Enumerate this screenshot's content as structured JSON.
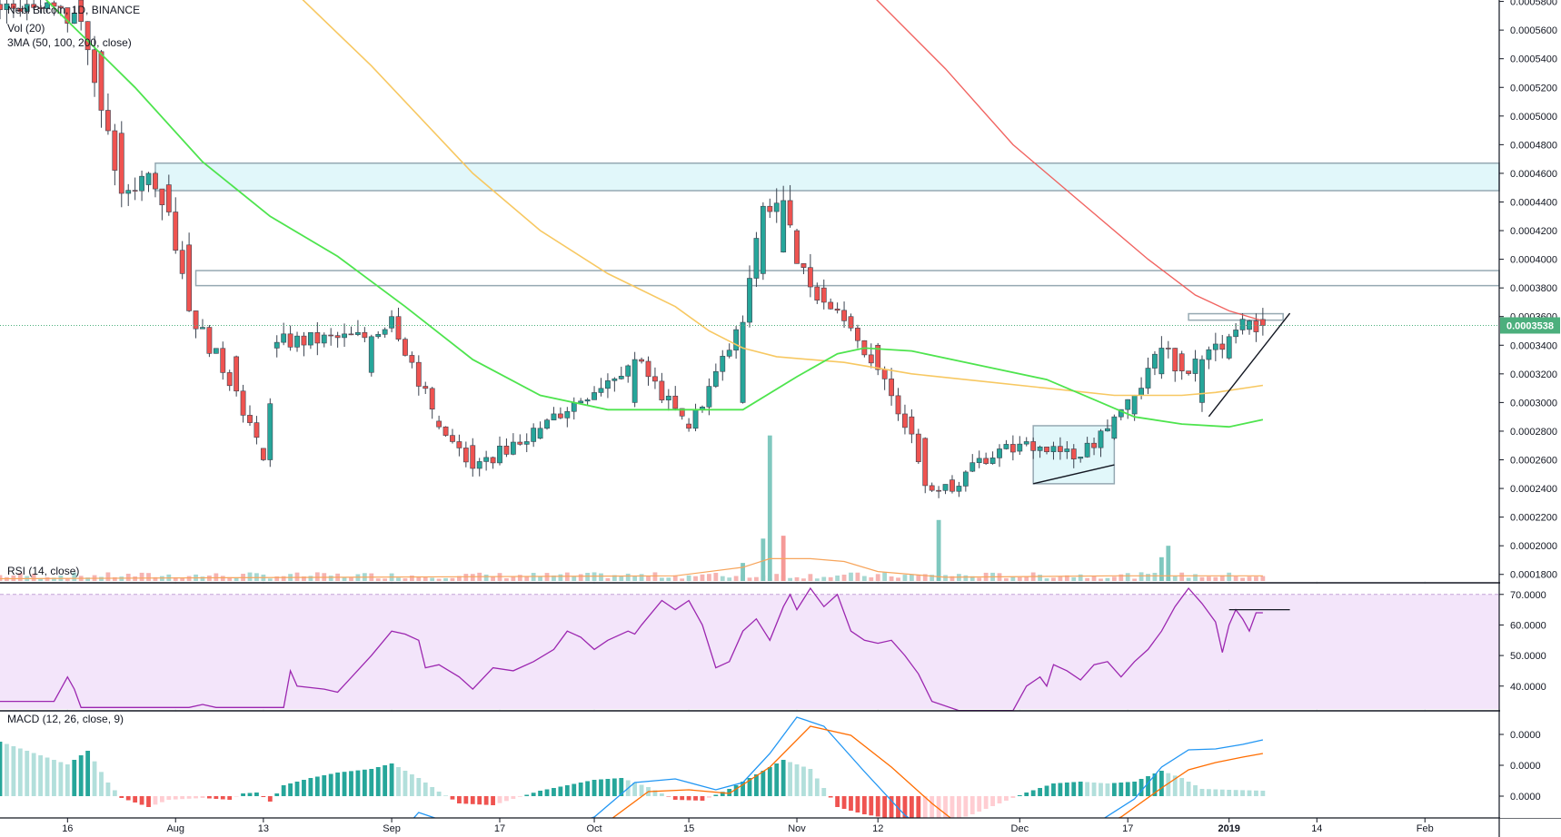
{
  "legend": {
    "symbol": "Nebl",
    "symbol_rest": "Bitcoin, 1D, BINANCE",
    "volume": "Vol (20)",
    "ma": "3MA (50, 100, 200, close)",
    "rsi": "RSI (14, close)",
    "macd": "MACD (12, 26, close, 9)"
  },
  "colors": {
    "up": "#26a69a",
    "down": "#ef5350",
    "ma50": "#4ee44e",
    "ma100": "#f7c862",
    "ma200": "#ef5350",
    "rsi_line": "#9c27b0",
    "rsi_band": "#f3e5fa",
    "macd_line": "#2196f3",
    "signal_line": "#ff6d00",
    "zone_fill": "#e0f7fa",
    "zone_border": "#90a4ae",
    "badge": "#4caf7d"
  },
  "chart_data": {
    "type": "candlestick",
    "price_axis": {
      "ticks": [
        "0.0005800",
        "0.0005600",
        "0.0005400",
        "0.0005200",
        "0.0005000",
        "0.0004800",
        "0.0004600",
        "0.0004400",
        "0.0004200",
        "0.0004000",
        "0.0003800",
        "0.0003600",
        "0.0003400",
        "0.0003200",
        "0.0003000",
        "0.0002800",
        "0.0002600",
        "0.0002400",
        "0.0002200",
        "0.0002000",
        "0.0001800"
      ],
      "last_price": "0.0003538",
      "ylim": [
        0.0001754,
        0.000581
      ]
    },
    "rsi_axis": {
      "ticks": [
        "70.0000",
        "60.0000",
        "50.0000",
        "40.0000"
      ],
      "band": [
        30,
        70
      ],
      "ylim": [
        32.5,
        73.2
      ]
    },
    "macd_axis": {
      "ticks": [
        "0.0000",
        "0.0000",
        "0.0000"
      ]
    },
    "x_axis": {
      "labels": [
        "16",
        "Aug",
        "13",
        "Sep",
        "17",
        "Oct",
        "15",
        "Nov",
        "12",
        "Dec",
        "17",
        "2019",
        "14",
        "Feb"
      ],
      "bold": [
        "2019"
      ],
      "label_days": [
        0,
        16,
        29,
        48,
        64,
        78,
        92,
        108,
        120,
        141,
        157,
        172,
        185,
        201
      ],
      "day_range": [
        -10,
        212
      ],
      "last_candle_day": 177
    },
    "candles_sampled": [
      {
        "day": -6,
        "open": 0.000573,
        "close": 0.000578
      },
      {
        "day": 2,
        "open": 0.000581,
        "close": 0.000566
      },
      {
        "day": 5,
        "open": 0.000545,
        "close": 0.000504
      },
      {
        "day": 8,
        "open": 0.000488,
        "close": 0.000446
      },
      {
        "day": 12,
        "open": 0.000452,
        "close": 0.00046
      },
      {
        "day": 15,
        "open": 0.000452,
        "close": 0.000433
      },
      {
        "day": 18,
        "open": 0.00041,
        "close": 0.000364
      },
      {
        "day": 25,
        "open": 0.000332,
        "close": 0.000308
      },
      {
        "day": 29,
        "open": 0.000268,
        "close": 0.00026
      },
      {
        "day": 31,
        "open": 0.000338,
        "close": 0.000342
      },
      {
        "day": 45,
        "open": 0.000321,
        "close": 0.000346
      },
      {
        "day": 48,
        "open": 0.000352,
        "close": 0.00036
      },
      {
        "day": 55,
        "open": 0.000287,
        "close": 0.000283
      },
      {
        "day": 60,
        "open": 0.00027,
        "close": 0.000254
      },
      {
        "day": 70,
        "open": 0.000275,
        "close": 0.000282
      },
      {
        "day": 84,
        "open": 0.0003,
        "close": 0.00033
      },
      {
        "day": 92,
        "open": 0.000285,
        "close": 0.000282
      },
      {
        "day": 100,
        "open": 0.0003,
        "close": 0.000356
      },
      {
        "day": 103,
        "open": 0.00039,
        "close": 0.000437
      },
      {
        "day": 106,
        "open": 0.000405,
        "close": 0.000441
      },
      {
        "day": 108,
        "open": 0.00042,
        "close": 0.000397
      },
      {
        "day": 112,
        "open": 0.00038,
        "close": 0.00037
      },
      {
        "day": 116,
        "open": 0.00036,
        "close": 0.000352
      },
      {
        "day": 120,
        "open": 0.00034,
        "close": 0.000323
      },
      {
        "day": 125,
        "open": 0.00029,
        "close": 0.000278
      },
      {
        "day": 127,
        "open": 0.000275,
        "close": 0.000242
      },
      {
        "day": 131,
        "open": 0.000246,
        "close": 0.000238
      },
      {
        "day": 134,
        "open": 0.000252,
        "close": 0.000258
      },
      {
        "day": 141,
        "open": 0.000266,
        "close": 0.000271
      },
      {
        "day": 150,
        "open": 0.000261,
        "close": 0.000262
      },
      {
        "day": 155,
        "open": 0.000275,
        "close": 0.00029
      },
      {
        "day": 158,
        "open": 0.000292,
        "close": 0.000305
      },
      {
        "day": 162,
        "open": 0.00032,
        "close": 0.000338
      },
      {
        "day": 165,
        "open": 0.000334,
        "close": 0.000322
      },
      {
        "day": 168,
        "open": 0.0003,
        "close": 0.00033
      },
      {
        "day": 172,
        "open": 0.000331,
        "close": 0.000346
      },
      {
        "day": 175,
        "open": 0.000351,
        "close": 0.000357
      },
      {
        "day": 177,
        "open": 0.000358,
        "close": 0.0003538
      }
    ],
    "ma50": [
      [
        -4,
        0.000585
      ],
      [
        10,
        0.00052
      ],
      [
        20,
        0.000468
      ],
      [
        30,
        0.00043
      ],
      [
        40,
        0.000402
      ],
      [
        50,
        0.000367
      ],
      [
        60,
        0.00033
      ],
      [
        70,
        0.000305
      ],
      [
        80,
        0.000295
      ],
      [
        90,
        0.000295
      ],
      [
        100,
        0.000295
      ],
      [
        108,
        0.000318
      ],
      [
        114,
        0.000334
      ],
      [
        118,
        0.000338
      ],
      [
        125,
        0.000336
      ],
      [
        135,
        0.000326
      ],
      [
        145,
        0.000316
      ],
      [
        152,
        0.000302
      ],
      [
        158,
        0.00029
      ],
      [
        165,
        0.000285
      ],
      [
        172,
        0.000283
      ],
      [
        177,
        0.000288
      ]
    ],
    "ma100": [
      [
        34,
        0.000585
      ],
      [
        45,
        0.000535
      ],
      [
        60,
        0.00046
      ],
      [
        70,
        0.00042
      ],
      [
        80,
        0.00039
      ],
      [
        90,
        0.000367
      ],
      [
        95,
        0.00035
      ],
      [
        100,
        0.000338
      ],
      [
        105,
        0.000332
      ],
      [
        115,
        0.000328
      ],
      [
        125,
        0.00032
      ],
      [
        135,
        0.000315
      ],
      [
        145,
        0.00031
      ],
      [
        155,
        0.000305
      ],
      [
        165,
        0.000305
      ],
      [
        170,
        0.000307
      ],
      [
        177,
        0.000312
      ]
    ],
    "ma200": [
      [
        119,
        0.000585
      ],
      [
        130,
        0.000533
      ],
      [
        140,
        0.00048
      ],
      [
        150,
        0.00044
      ],
      [
        160,
        0.0004
      ],
      [
        167,
        0.000375
      ],
      [
        172,
        0.000364
      ],
      [
        177,
        0.000357
      ]
    ],
    "volume_sampled": [
      {
        "day": 100,
        "vol": 0.000188,
        "up": true
      },
      {
        "day": 103,
        "vol": 0.000205,
        "up": true
      },
      {
        "day": 104,
        "vol": 0.000277,
        "up": true
      },
      {
        "day": 106,
        "vol": 0.000207,
        "up": false
      },
      {
        "day": 129,
        "vol": 0.000218,
        "up": true
      },
      {
        "day": 162,
        "vol": 0.000192,
        "up": true
      },
      {
        "day": 163,
        "vol": 0.0002,
        "up": true
      }
    ],
    "volume_ma": [
      [
        -10,
        0.000177
      ],
      [
        90,
        0.000179
      ],
      [
        100,
        0.000185
      ],
      [
        104,
        0.000191
      ],
      [
        110,
        0.000191
      ],
      [
        115,
        0.000189
      ],
      [
        120,
        0.000182
      ],
      [
        130,
        0.000178
      ],
      [
        155,
        0.000179
      ],
      [
        177,
        0.000179
      ]
    ],
    "rsi_sampled": [
      [
        -10,
        35
      ],
      [
        -2,
        35
      ],
      [
        0,
        43
      ],
      [
        1,
        39
      ],
      [
        2,
        33
      ],
      [
        18,
        33
      ],
      [
        20,
        34
      ],
      [
        22,
        33
      ],
      [
        32,
        33
      ],
      [
        33,
        45
      ],
      [
        34,
        40
      ],
      [
        38,
        39
      ],
      [
        40,
        38
      ],
      [
        45,
        50
      ],
      [
        48,
        58
      ],
      [
        50,
        57
      ],
      [
        52,
        55
      ],
      [
        53,
        46
      ],
      [
        55,
        47
      ],
      [
        58,
        43
      ],
      [
        60,
        39
      ],
      [
        63,
        46
      ],
      [
        66,
        45
      ],
      [
        69,
        48
      ],
      [
        72,
        52
      ],
      [
        74,
        58
      ],
      [
        76,
        56
      ],
      [
        78,
        52
      ],
      [
        80,
        55
      ],
      [
        83,
        58
      ],
      [
        84,
        57
      ],
      [
        85,
        60
      ],
      [
        88,
        68
      ],
      [
        90,
        65
      ],
      [
        92,
        68
      ],
      [
        94,
        60
      ],
      [
        96,
        46
      ],
      [
        98,
        48
      ],
      [
        100,
        58
      ],
      [
        102,
        62
      ],
      [
        104,
        55
      ],
      [
        106,
        66
      ],
      [
        107,
        70
      ],
      [
        108,
        65
      ],
      [
        110,
        72
      ],
      [
        112,
        66
      ],
      [
        114,
        70
      ],
      [
        116,
        58
      ],
      [
        118,
        55
      ],
      [
        120,
        54
      ],
      [
        122,
        55
      ],
      [
        124,
        50
      ],
      [
        126,
        44
      ],
      [
        128,
        35
      ],
      [
        132,
        32
      ],
      [
        140,
        32
      ],
      [
        142,
        40
      ],
      [
        144,
        43
      ],
      [
        145,
        40
      ],
      [
        146,
        47
      ],
      [
        148,
        45
      ],
      [
        150,
        42
      ],
      [
        152,
        47
      ],
      [
        154,
        48
      ],
      [
        156,
        43
      ],
      [
        158,
        48
      ],
      [
        160,
        52
      ],
      [
        162,
        58
      ],
      [
        164,
        66
      ],
      [
        166,
        72
      ],
      [
        168,
        67
      ],
      [
        170,
        61
      ],
      [
        171,
        51
      ],
      [
        172,
        60
      ],
      [
        173,
        65
      ],
      [
        174,
        62
      ],
      [
        175,
        58
      ],
      [
        176,
        64
      ],
      [
        177,
        64
      ]
    ],
    "rsi_annotation": {
      "from_day": 172,
      "to_day": 181,
      "value": 65
    },
    "zones": [
      {
        "from_day": 13,
        "to_day": 212,
        "top": 0.0004671,
        "bottom": 0.0004479,
        "shaded": true
      },
      {
        "from_day": 19,
        "to_day": 212,
        "top": 0.0003921,
        "bottom": 0.0003816,
        "shaded": false
      },
      {
        "from_day": 143,
        "to_day": 155,
        "top": 0.0002838,
        "bottom": 0.0002433,
        "shaded": true
      },
      {
        "from_day": 166,
        "to_day": 180,
        "top": 0.000362,
        "bottom": 0.0003575,
        "shaded": false
      }
    ],
    "trendlines": [
      [
        [
          143,
          0.0002433
        ],
        [
          155,
          0.0002565
        ]
      ],
      [
        [
          169,
          0.0002902
        ],
        [
          181,
          0.0003623
        ]
      ]
    ]
  }
}
